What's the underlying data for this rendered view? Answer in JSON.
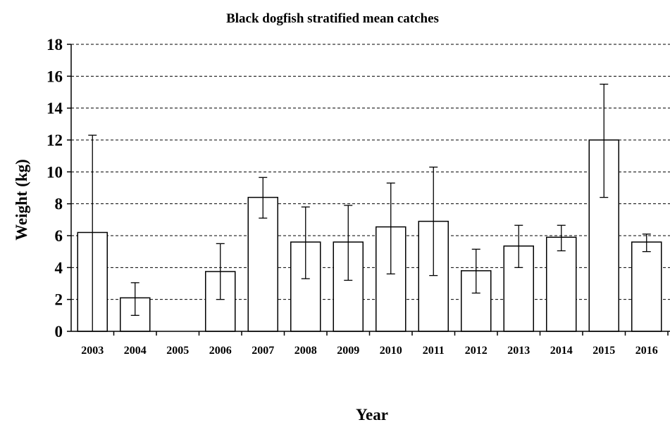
{
  "chart_data": {
    "type": "bar",
    "title": "Black dogfish stratified mean catches",
    "xlabel": "Year",
    "ylabel": "Weight (kg)",
    "ylim": [
      0,
      18
    ],
    "yticks": [
      0,
      2,
      4,
      6,
      8,
      10,
      12,
      14,
      16,
      18
    ],
    "grid": true,
    "categories": [
      "2003",
      "2004",
      "2005",
      "2006",
      "2007",
      "2008",
      "2009",
      "2010",
      "2011",
      "2012",
      "2013",
      "2014",
      "2015",
      "2016"
    ],
    "values": [
      6.2,
      2.1,
      0,
      3.75,
      8.4,
      5.6,
      5.6,
      6.55,
      6.9,
      3.8,
      5.35,
      5.9,
      12.0,
      5.6
    ],
    "error_low": [
      0,
      1.0,
      0,
      2.0,
      7.1,
      3.3,
      3.2,
      3.6,
      3.5,
      2.4,
      4.0,
      5.05,
      8.4,
      5.0
    ],
    "error_high": [
      12.3,
      3.05,
      0,
      5.5,
      9.65,
      7.8,
      7.9,
      9.3,
      10.3,
      5.15,
      6.65,
      6.65,
      15.5,
      6.1
    ]
  }
}
